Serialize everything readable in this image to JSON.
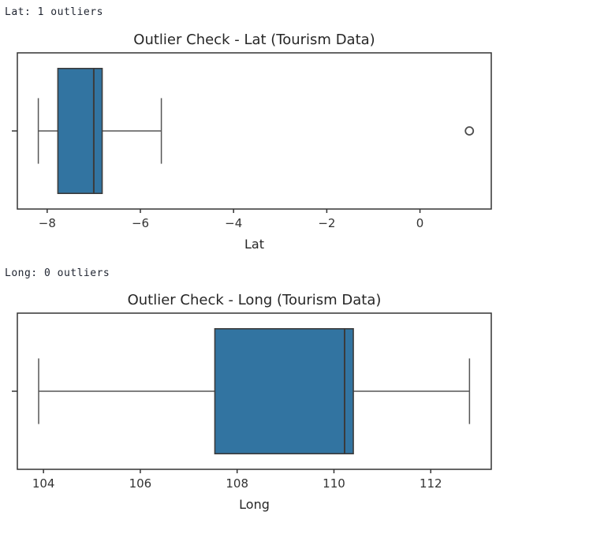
{
  "outputs": [
    {
      "stdout": "Lat: 1 outliers"
    },
    {
      "stdout": "Long: 0 outliers"
    }
  ],
  "chart_data": [
    {
      "type": "boxplot",
      "orientation": "horizontal",
      "title": "Outlier Check - Lat (Tourism Data)",
      "xlabel": "Lat",
      "xlim": [
        -8.64,
        1.53
      ],
      "xticks": [
        {
          "value": -8,
          "label": "−8"
        },
        {
          "value": -6,
          "label": "−6"
        },
        {
          "value": -4,
          "label": "−4"
        },
        {
          "value": -2,
          "label": "−2"
        },
        {
          "value": 0,
          "label": "0"
        }
      ],
      "stats": {
        "whisker_low": -8.19,
        "q1": -7.77,
        "median": -7.0,
        "q3": -6.82,
        "whisker_high": -5.55
      },
      "outliers": [
        1.06
      ],
      "grid": false,
      "legend": null
    },
    {
      "type": "boxplot",
      "orientation": "horizontal",
      "title": "Outlier Check - Long (Tourism Data)",
      "xlabel": "Long",
      "xlim": [
        103.46,
        113.25
      ],
      "xticks": [
        {
          "value": 104,
          "label": "104"
        },
        {
          "value": 106,
          "label": "106"
        },
        {
          "value": 108,
          "label": "108"
        },
        {
          "value": 110,
          "label": "110"
        },
        {
          "value": 112,
          "label": "112"
        }
      ],
      "stats": {
        "whisker_low": 103.9,
        "q1": 107.54,
        "median": 110.22,
        "q3": 110.4,
        "whisker_high": 112.8
      },
      "outliers": [],
      "grid": false,
      "legend": null
    }
  ],
  "colors": {
    "box_fill": "#3274a1",
    "box_edge": "#3b3b3b",
    "whisker": "#555555",
    "spine": "#333333",
    "outlier_stroke": "#4d4d4d",
    "title_text": "#262626",
    "tick_text": "#333333",
    "stdout_text": "#1f2430",
    "background": "#ffffff"
  }
}
